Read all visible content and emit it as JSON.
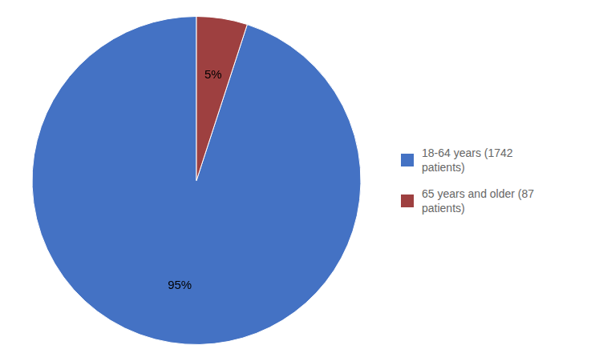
{
  "chart_data": {
    "type": "pie",
    "categories": [
      "18-64 years (1742\npatients)",
      "65 years and older (87\npatients)"
    ],
    "values": [
      95,
      5
    ],
    "value_labels": [
      "95%",
      "5%"
    ],
    "colors": [
      "#4472C4",
      "#9E4040"
    ],
    "data_labels": true,
    "legend": "right"
  }
}
